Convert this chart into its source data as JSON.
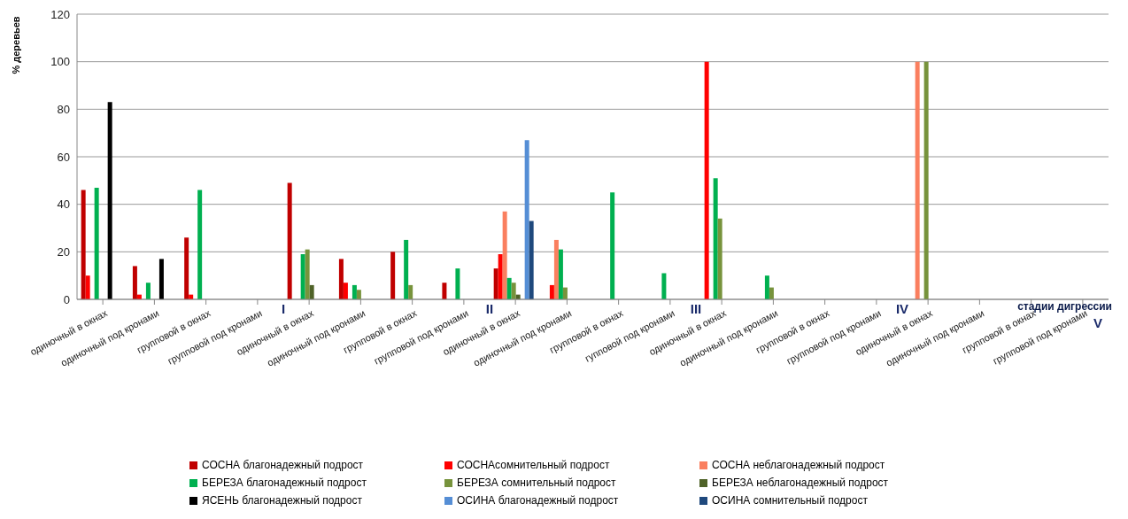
{
  "chart_data": {
    "type": "bar",
    "ylabel": "% деревьев",
    "xlabel": "стадии дигрессии",
    "categories": [
      "одиночный в окнах",
      "одиночный под кронами",
      "групповой в окнах",
      "групповой под кронами",
      "одиночный в окнах",
      "одиночный под кронами",
      "групповой в окнах",
      "групповой под кронами",
      "одиночный в окнах",
      "одиночный под кронами",
      "групповой в окнах",
      "гупповой под кронами",
      "одиночный в окнах",
      "одиночный под кронами",
      "групповой в окнах",
      "групповой под кронами",
      "одиночный в окнах",
      "одиночный под кронами",
      "групповой в окнах",
      "групповой под кронами"
    ],
    "series": [
      {
        "name": "СОСНА благонадежный подрост",
        "color": "#c00000",
        "values": [
          46,
          14,
          26,
          null,
          49,
          17,
          20,
          7,
          13,
          null,
          null,
          null,
          null,
          null,
          null,
          null,
          null,
          null,
          null,
          null
        ]
      },
      {
        "name": "СОСНАсомнительный подрост",
        "color": "#ff0000",
        "values": [
          10,
          2,
          2,
          null,
          null,
          7,
          null,
          null,
          19,
          6,
          null,
          null,
          100,
          null,
          null,
          null,
          null,
          null,
          null,
          null
        ]
      },
      {
        "name": "СОСНА неблагонадежный подрост",
        "color": "#fa7f5f",
        "values": [
          null,
          null,
          null,
          null,
          null,
          null,
          null,
          null,
          37,
          25,
          null,
          null,
          null,
          null,
          null,
          null,
          100,
          null,
          null,
          null
        ]
      },
      {
        "name": "БЕРЕЗА благонадежный подрост",
        "color": "#00b050",
        "values": [
          47,
          7,
          46,
          null,
          19,
          6,
          25,
          13,
          9,
          21,
          45,
          11,
          51,
          10,
          null,
          null,
          null,
          null,
          null,
          null
        ]
      },
      {
        "name": "БЕРЕЗА сомнительный подрост",
        "color": "#77933c",
        "values": [
          null,
          null,
          null,
          null,
          21,
          4,
          6,
          null,
          7,
          5,
          null,
          null,
          34,
          5,
          null,
          null,
          100,
          null,
          null,
          null
        ]
      },
      {
        "name": "БЕРЕЗА неблагонадежный подрост",
        "color": "#4f6228",
        "values": [
          null,
          null,
          null,
          null,
          6,
          null,
          null,
          null,
          2,
          null,
          null,
          null,
          null,
          null,
          null,
          null,
          null,
          null,
          null,
          null
        ]
      },
      {
        "name": "ЯСЕНЬ благонадежный подрост",
        "color": "#000000",
        "values": [
          83,
          17,
          null,
          null,
          null,
          null,
          null,
          null,
          null,
          null,
          null,
          null,
          null,
          null,
          null,
          null,
          null,
          null,
          null,
          null
        ]
      },
      {
        "name": "ОСИНА благонадежный подрост",
        "color": "#558ed5",
        "values": [
          null,
          null,
          null,
          null,
          null,
          null,
          null,
          null,
          67,
          null,
          null,
          null,
          null,
          null,
          null,
          null,
          null,
          null,
          null,
          null
        ]
      },
      {
        "name": "ОСИНА сомнительный подрост",
        "color": "#1f497d",
        "values": [
          null,
          null,
          null,
          null,
          null,
          null,
          null,
          null,
          33,
          null,
          null,
          null,
          null,
          null,
          null,
          null,
          null,
          null,
          null,
          null
        ]
      }
    ],
    "annotations": [
      "I",
      "II",
      "III",
      "IV",
      "V"
    ],
    "ylim": [
      0,
      120
    ],
    "yticks": [
      0,
      20,
      40,
      60,
      80,
      100,
      120
    ],
    "grid": "y",
    "legend": "bottom"
  }
}
